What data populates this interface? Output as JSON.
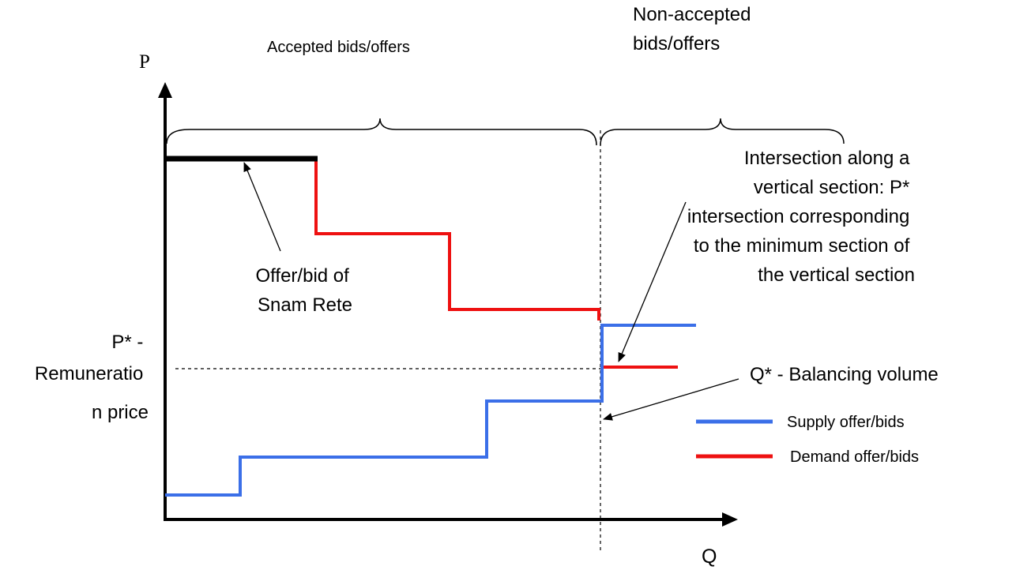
{
  "axes": {
    "y_label": "P",
    "x_label": "Q"
  },
  "braces": {
    "accepted": "Accepted bids/offers",
    "non_accepted": [
      "Non-accepted",
      "bids/offers"
    ]
  },
  "annotations": {
    "snam_offer": [
      "Offer/bid of",
      "Snam Rete"
    ],
    "intersection_note": [
      "Intersection along a",
      "vertical section: P*",
      "intersection corresponding",
      "to the minimum section of",
      "the vertical section"
    ],
    "price_label": [
      "P* -",
      "Remuneratio",
      "n price"
    ],
    "volume_label": "Q* - Balancing volume"
  },
  "legend": [
    {
      "label": "Supply offer/bids",
      "color": "#3b6fe8"
    },
    {
      "label": "Demand offer/bids",
      "color": "#ee1111"
    }
  ],
  "colors": {
    "supply": "#3b6fe8",
    "demand": "#ee1111",
    "snam": "#000000"
  }
}
